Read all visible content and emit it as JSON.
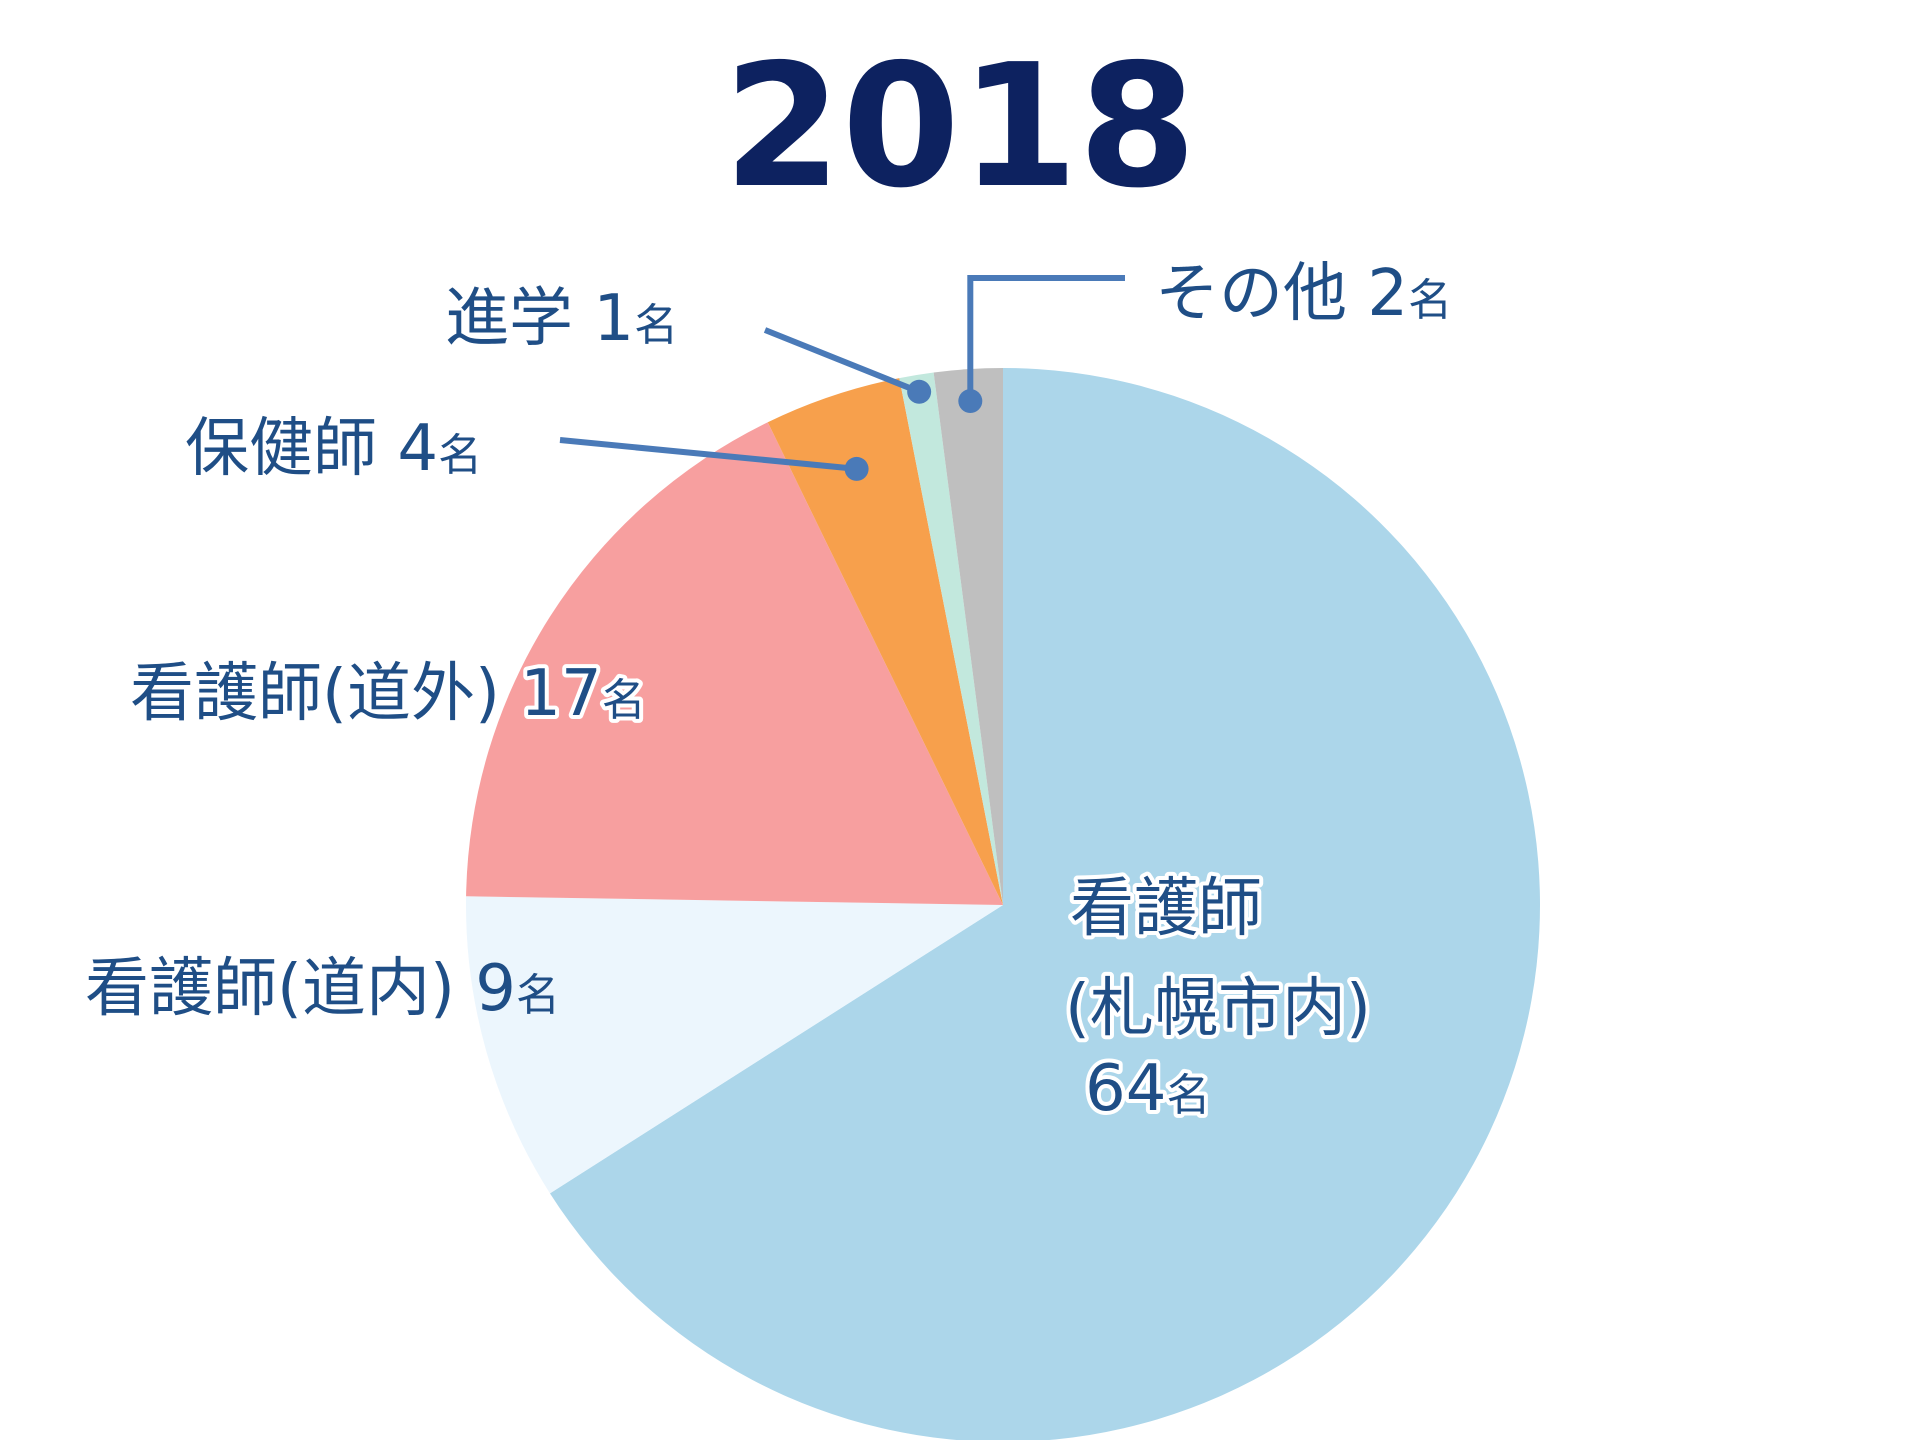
{
  "chart_data": {
    "type": "pie",
    "title": "2018",
    "unit": "名",
    "slices": [
      {
        "label": "看護師(札幌市内)",
        "label_lines": [
          "看護師",
          "(札幌市内)",
          "64"
        ],
        "value": 64,
        "color": "#acd6ea"
      },
      {
        "label": "看護師(道内)",
        "label_lines": [
          "看護師(道内) 9"
        ],
        "value": 9,
        "color": "#ecf6fd"
      },
      {
        "label": "看護師(道外)",
        "label_lines": [
          "看護師(道外) 17"
        ],
        "value": 17,
        "color": "#f79f9f"
      },
      {
        "label": "保健師",
        "label_lines": [
          "保健師 4"
        ],
        "value": 4,
        "color": "#f7a04c"
      },
      {
        "label": "進学",
        "label_lines": [
          "進学 1"
        ],
        "value": 1,
        "color": "#c2e8dd"
      },
      {
        "label": "その他",
        "label_lines": [
          "その他 2"
        ],
        "value": 2,
        "color": "#bfbfbf"
      }
    ],
    "order": "clockwise from top"
  }
}
